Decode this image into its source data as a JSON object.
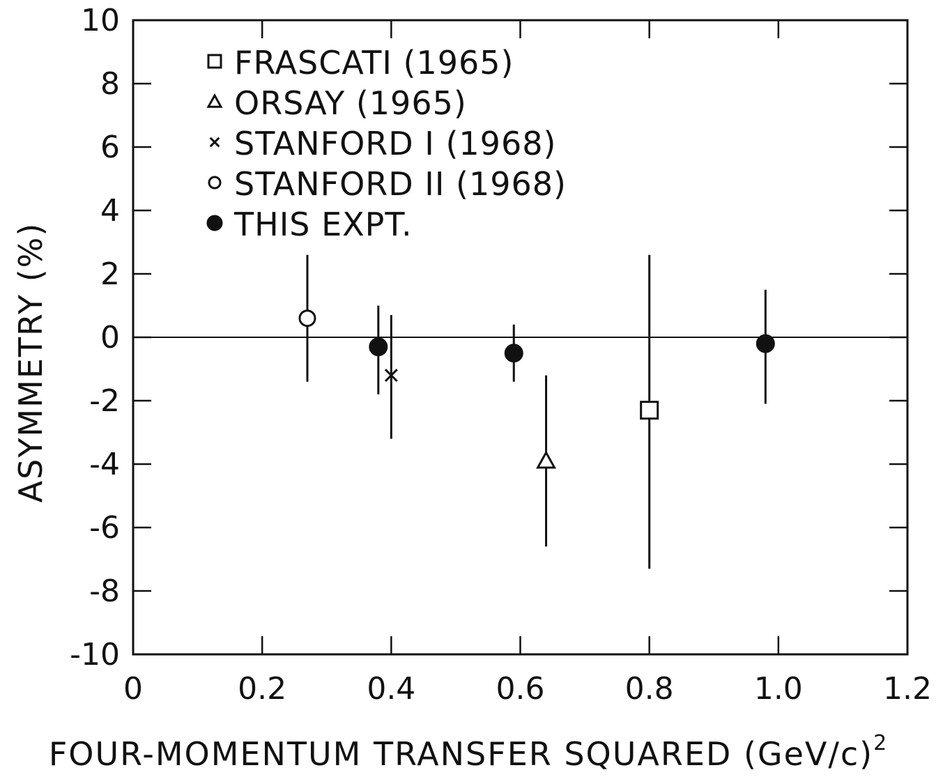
{
  "chart_data": {
    "type": "scatter",
    "xlabel": "FOUR-MOMENTUM TRANSFER SQUARED (GeV/c)",
    "xlabel_superscript": "2",
    "ylabel": "ASYMMETRY (%)",
    "xlim": [
      0,
      1.2
    ],
    "ylim": [
      -10,
      10
    ],
    "x_ticks": [
      0,
      0.2,
      0.4,
      0.6,
      0.8,
      1.0,
      1.2
    ],
    "x_tick_labels": [
      "0",
      "0.2",
      "0.4",
      "0.6",
      "0.8",
      "1.0",
      "1.2"
    ],
    "y_ticks": [
      10,
      8,
      6,
      4,
      2,
      0,
      -2,
      -4,
      -6,
      -8,
      -10
    ],
    "y_tick_labels": [
      "10",
      "8",
      "6",
      "4",
      "2",
      "0",
      "-2",
      "-4",
      "-6",
      "-8",
      "-10"
    ],
    "reference_line": {
      "y": 0
    },
    "grid": false,
    "legend_position": "top-left",
    "series": [
      {
        "name": "FRASCATI (1965)",
        "marker": "square",
        "points": [
          {
            "x": 0.8,
            "y": -2.3,
            "ylow": -7.3,
            "yhigh": 2.6
          }
        ]
      },
      {
        "name": "ORSAY (1965)",
        "marker": "triangle",
        "points": [
          {
            "x": 0.64,
            "y": -3.9,
            "ylow": -6.6,
            "yhigh": -1.2
          }
        ]
      },
      {
        "name": "STANFORD I (1968)",
        "marker": "cross",
        "points": [
          {
            "x": 0.4,
            "y": -1.2,
            "ylow": -3.2,
            "yhigh": 0.7
          }
        ]
      },
      {
        "name": "STANFORD II (1968)",
        "marker": "open-circle",
        "points": [
          {
            "x": 0.27,
            "y": 0.6,
            "ylow": -1.4,
            "yhigh": 2.6
          }
        ]
      },
      {
        "name": "THIS EXPT.",
        "marker": "filled-circle",
        "points": [
          {
            "x": 0.38,
            "y": -0.3,
            "ylow": -1.8,
            "yhigh": 1.0
          },
          {
            "x": 0.59,
            "y": -0.5,
            "ylow": -1.4,
            "yhigh": 0.4
          },
          {
            "x": 0.98,
            "y": -0.2,
            "ylow": -2.1,
            "yhigh": 1.5
          }
        ]
      }
    ]
  }
}
